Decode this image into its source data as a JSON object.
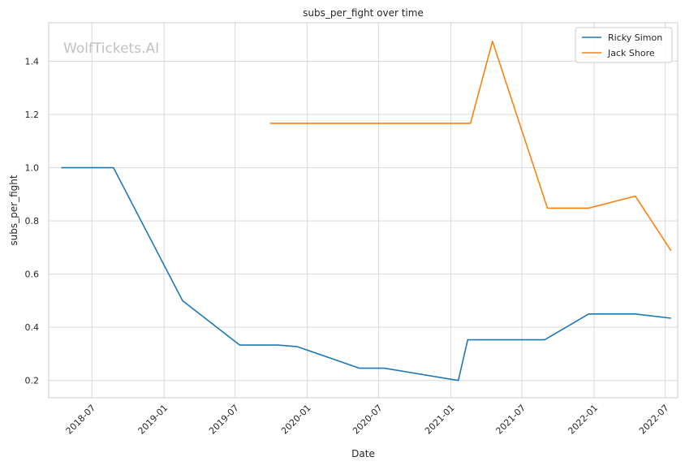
{
  "chart_data": {
    "type": "line",
    "title": "subs_per_fight over time",
    "xlabel": "Date",
    "ylabel": "subs_per_fight",
    "watermark": "WolfTickets.AI",
    "x_ticks": [
      "2018-07",
      "2019-01",
      "2019-07",
      "2020-01",
      "2020-07",
      "2021-01",
      "2021-07",
      "2022-01",
      "2022-07"
    ],
    "y_ticks": [
      "0.2",
      "0.4",
      "0.6",
      "0.8",
      "1.0",
      "1.2",
      "1.4"
    ],
    "xlim": [
      "2018-03-13",
      "2022-08-02"
    ],
    "ylim": [
      0.135,
      1.545
    ],
    "grid": true,
    "legend_position": "top-right",
    "series": [
      {
        "name": "Ricky Simon",
        "color": "#1f77b4",
        "points": [
          {
            "x": "2018-04-14",
            "y": 1.0
          },
          {
            "x": "2018-08-25",
            "y": 1.0
          },
          {
            "x": "2019-02-17",
            "y": 0.5
          },
          {
            "x": "2019-07-13",
            "y": 0.333
          },
          {
            "x": "2019-10-18",
            "y": 0.333
          },
          {
            "x": "2019-12-07",
            "y": 0.327
          },
          {
            "x": "2020-05-13",
            "y": 0.246
          },
          {
            "x": "2020-07-15",
            "y": 0.246
          },
          {
            "x": "2021-01-20",
            "y": 0.2
          },
          {
            "x": "2021-02-13",
            "y": 0.353
          },
          {
            "x": "2021-08-28",
            "y": 0.353
          },
          {
            "x": "2021-12-18",
            "y": 0.45
          },
          {
            "x": "2022-04-16",
            "y": 0.45
          },
          {
            "x": "2022-07-16",
            "y": 0.434
          }
        ]
      },
      {
        "name": "Jack Shore",
        "color": "#ff7f0e",
        "points": [
          {
            "x": "2019-09-28",
            "y": 1.167
          },
          {
            "x": "2021-02-20",
            "y": 1.167
          },
          {
            "x": "2021-04-17",
            "y": 1.475
          },
          {
            "x": "2021-09-04",
            "y": 0.848
          },
          {
            "x": "2021-12-18",
            "y": 0.848
          },
          {
            "x": "2022-04-16",
            "y": 0.893
          },
          {
            "x": "2022-07-16",
            "y": 0.688
          }
        ]
      }
    ]
  }
}
